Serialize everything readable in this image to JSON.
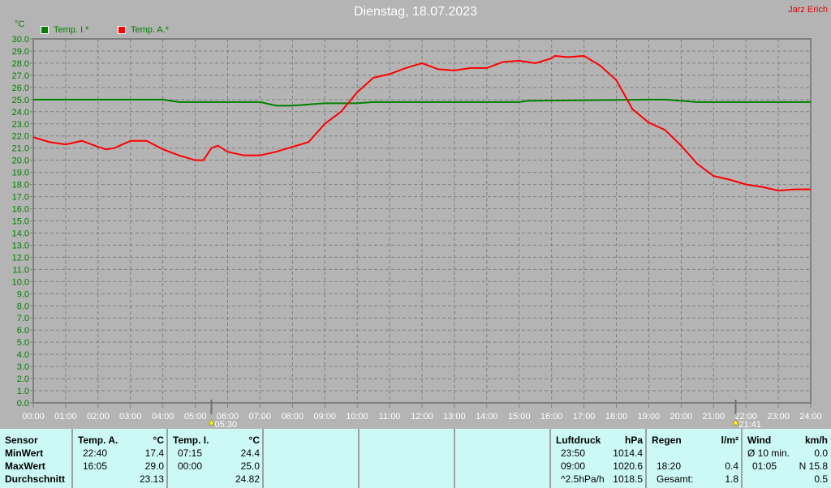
{
  "header": {
    "title": "Dienstag, 18.07.2023",
    "author": "Jarz Erich"
  },
  "chart_data": {
    "type": "line",
    "title": "Dienstag, 18.07.2023",
    "ylabel": "°C",
    "ylim": [
      0,
      30
    ],
    "xlim": [
      "00:00",
      "24:00"
    ],
    "grid": true,
    "legend": "top-left",
    "x_ticks": [
      "00:00",
      "01:00",
      "02:00",
      "03:00",
      "04:00",
      "05:00",
      "06:00",
      "07:00",
      "08:00",
      "09:00",
      "10:00",
      "11:00",
      "12:00",
      "13:00",
      "14:00",
      "15:00",
      "16:00",
      "17:00",
      "18:00",
      "19:00",
      "20:00",
      "21:00",
      "22:00",
      "23:00",
      "24:00"
    ],
    "y_ticks": [
      "0.0",
      "1.0",
      "2.0",
      "3.0",
      "4.0",
      "5.0",
      "6.0",
      "7.0",
      "8.0",
      "9.0",
      "10.0",
      "11.0",
      "12.0",
      "13.0",
      "14.0",
      "15.0",
      "16.0",
      "17.0",
      "18.0",
      "19.0",
      "20.0",
      "21.0",
      "22.0",
      "23.0",
      "24.0",
      "25.0",
      "26.0",
      "27.0",
      "28.0",
      "29.0",
      "30.0"
    ],
    "markers": [
      {
        "label": "05:30",
        "hour": 5.5,
        "icon": "sunrise-icon"
      },
      {
        "label": "21:41",
        "hour": 21.683,
        "icon": "sunset-icon"
      }
    ],
    "series": [
      {
        "name": "Temp. I.*",
        "color": "#008000",
        "x": [
          0,
          4,
          4.5,
          7,
          7.5,
          8,
          8.5,
          9,
          10,
          10.5,
          15,
          15.25,
          19,
          19.5,
          20,
          20.5,
          22,
          24
        ],
        "y": [
          25.0,
          25.0,
          24.8,
          24.8,
          24.5,
          24.5,
          24.6,
          24.7,
          24.7,
          24.8,
          24.8,
          24.9,
          25.0,
          25.0,
          24.9,
          24.8,
          24.8,
          24.8
        ]
      },
      {
        "name": "Temp. A.*",
        "color": "#ff0000",
        "x": [
          0,
          0.5,
          1,
          1.5,
          2,
          2.25,
          2.5,
          3,
          3.5,
          4,
          4.5,
          5,
          5.25,
          5.5,
          5.7,
          6,
          6.5,
          7,
          7.5,
          8,
          8.5,
          9,
          9.5,
          10,
          10.5,
          11,
          11.5,
          12,
          12.5,
          13,
          13.5,
          14,
          14.5,
          15,
          15.5,
          16,
          16.1,
          16.5,
          17,
          17.5,
          18,
          18.5,
          19,
          19.5,
          20,
          20.5,
          21,
          21.5,
          22,
          22.5,
          23,
          23.5,
          24
        ],
        "y": [
          21.9,
          21.5,
          21.3,
          21.6,
          21.1,
          20.9,
          21.0,
          21.6,
          21.6,
          20.9,
          20.4,
          20.0,
          20.0,
          21.0,
          21.2,
          20.7,
          20.4,
          20.4,
          20.7,
          21.1,
          21.5,
          23.0,
          24.0,
          25.6,
          26.8,
          27.1,
          27.6,
          28.0,
          27.5,
          27.4,
          27.6,
          27.6,
          28.1,
          28.2,
          28.0,
          28.4,
          28.6,
          28.5,
          28.6,
          27.8,
          26.6,
          24.2,
          23.1,
          22.5,
          21.2,
          19.7,
          18.7,
          18.4,
          18.0,
          17.8,
          17.5,
          17.6,
          17.6
        ]
      }
    ]
  },
  "table": {
    "sensor": {
      "head": "Sensor",
      "rows": [
        "MinWert",
        "MaxWert",
        "Durchschnitt"
      ]
    },
    "temp_a": {
      "head": "Temp. A.",
      "unit": "°C",
      "rows": [
        [
          "22:40",
          "17.4"
        ],
        [
          "16:05",
          "29.0"
        ],
        [
          "",
          "23.13"
        ]
      ]
    },
    "temp_i": {
      "head": "Temp. I.",
      "unit": "°C",
      "rows": [
        [
          "07:15",
          "24.4"
        ],
        [
          "00:00",
          "25.0"
        ],
        [
          "",
          "24.82"
        ]
      ]
    },
    "luft": {
      "head": "Luftdruck",
      "unit": "hPa",
      "rows": [
        [
          "23:50",
          "1014.4"
        ],
        [
          "09:00",
          "1020.6"
        ],
        [
          "^2.5hPa/h",
          "1018.5"
        ]
      ]
    },
    "regen": {
      "head": "Regen",
      "unit": "l/m²",
      "rows": [
        [
          "",
          ""
        ],
        [
          "18:20",
          "0.4"
        ],
        [
          "Gesamt:",
          "1.8"
        ]
      ]
    },
    "wind": {
      "head": "Wind",
      "unit": "km/h",
      "rows": [
        [
          "Ø 10 min.",
          "0.0"
        ],
        [
          "01:05",
          "N 15.8"
        ],
        [
          "",
          "0.5"
        ]
      ]
    }
  }
}
